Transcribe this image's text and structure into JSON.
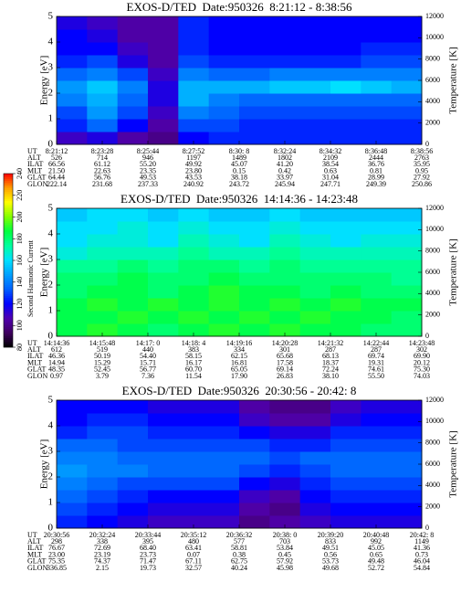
{
  "colorbar": {
    "label": "Second Harmonic Current",
    "lim": [
      80,
      240
    ],
    "ticks": [
      80,
      100,
      120,
      140,
      160,
      180,
      200,
      220,
      240
    ],
    "colors": [
      "#000000",
      "#400060",
      "#5000b0",
      "#0000ff",
      "#0060ff",
      "#00a0ff",
      "#00e0ff",
      "#00ffa0",
      "#00ff40",
      "#80ff00",
      "#ffff00",
      "#ffa000",
      "#ff0000"
    ]
  },
  "chart_data": [
    {
      "type": "heatmap",
      "title": "EXOS-D/TED  Date:950326  8:21:12 - 8:38:56",
      "ylabel": "Energy [eV]",
      "y2label": "Temperature [K]",
      "ylim": [
        0,
        5
      ],
      "yticks": [
        0,
        1,
        2,
        3,
        4,
        5
      ],
      "y2lim": [
        0,
        12000
      ],
      "y2ticks": [
        0,
        2000,
        4000,
        6000,
        8000,
        10000,
        12000
      ],
      "y_edges": [
        0,
        0.5,
        1,
        1.5,
        2,
        2.5,
        3,
        3.5,
        4,
        4.5,
        5
      ],
      "z": [
        [
          110,
          115,
          105,
          100,
          120,
          125,
          125,
          125,
          125,
          125,
          125,
          125
        ],
        [
          125,
          135,
          120,
          105,
          130,
          130,
          125,
          125,
          125,
          125,
          125,
          125
        ],
        [
          130,
          145,
          130,
          110,
          140,
          135,
          130,
          130,
          130,
          130,
          130,
          130
        ],
        [
          140,
          150,
          135,
          115,
          150,
          140,
          135,
          135,
          135,
          135,
          135,
          135
        ],
        [
          145,
          155,
          140,
          115,
          150,
          150,
          150,
          155,
          155,
          160,
          155,
          150
        ],
        [
          135,
          140,
          130,
          110,
          140,
          135,
          135,
          140,
          140,
          140,
          140,
          140
        ],
        [
          125,
          130,
          115,
          105,
          130,
          125,
          125,
          125,
          125,
          125,
          130,
          130
        ],
        [
          120,
          120,
          110,
          105,
          125,
          120,
          120,
          120,
          120,
          120,
          125,
          125
        ],
        [
          120,
          115,
          105,
          105,
          125,
          120,
          120,
          120,
          120,
          120,
          120,
          120
        ],
        [
          115,
          110,
          105,
          105,
          125,
          120,
          120,
          120,
          120,
          120,
          120,
          120
        ]
      ],
      "table": {
        "labels": [
          "UT",
          "ALT",
          "ILAT",
          "MLT",
          "GLAT",
          "GLON"
        ],
        "rows": [
          [
            "8:21:12",
            "8:23:28",
            "8:25:44",
            "8:27:52",
            "8:30: 8",
            "8:32:24",
            "8:34:32",
            "8:36:48",
            "8:38:56"
          ],
          [
            "526",
            "714",
            "946",
            "1197",
            "1489",
            "1802",
            "2109",
            "2444",
            "2763"
          ],
          [
            "66.56",
            "61.12",
            "55.20",
            "49.92",
            "45.07",
            "41.20",
            "38.54",
            "36.76",
            "35.95"
          ],
          [
            "21.50",
            "22.63",
            "23.35",
            "23.80",
            "0.15",
            "0.42",
            "0.63",
            "0.81",
            "0.95"
          ],
          [
            "64.44",
            "56.76",
            "49.53",
            "43.53",
            "38.18",
            "33.97",
            "31.04",
            "28.99",
            "27.92"
          ],
          [
            "222.14",
            "231.68",
            "237.33",
            "240.92",
            "243.72",
            "245.94",
            "247.71",
            "249.39",
            "250.86"
          ]
        ]
      }
    },
    {
      "type": "heatmap",
      "title": "EXOS-D/TED  Date:950326  14:14:36 - 14:23:48",
      "ylabel": "Energy [eV]",
      "y2label": "Temperature [K]",
      "ylim": [
        0,
        5
      ],
      "yticks": [
        0,
        1,
        2,
        3,
        4,
        5
      ],
      "y2lim": [
        0,
        12000
      ],
      "y2ticks": [
        0,
        2000,
        4000,
        6000,
        8000,
        10000,
        12000
      ],
      "y_edges": [
        0,
        0.5,
        1,
        1.5,
        2,
        2.5,
        3,
        3.5,
        4,
        4.5,
        5
      ],
      "z": [
        [
          185,
          190,
          185,
          180,
          185,
          190,
          185,
          190,
          185,
          185,
          180,
          180
        ],
        [
          185,
          185,
          190,
          185,
          190,
          185,
          190,
          185,
          190,
          185,
          185,
          180
        ],
        [
          185,
          190,
          185,
          190,
          185,
          190,
          185,
          190,
          185,
          190,
          185,
          185
        ],
        [
          180,
          185,
          185,
          180,
          185,
          190,
          185,
          185,
          180,
          185,
          180,
          180
        ],
        [
          180,
          180,
          185,
          180,
          180,
          185,
          180,
          180,
          180,
          180,
          180,
          175
        ],
        [
          175,
          175,
          180,
          175,
          180,
          180,
          175,
          180,
          175,
          175,
          175,
          175
        ],
        [
          165,
          170,
          170,
          170,
          175,
          170,
          170,
          175,
          170,
          170,
          170,
          170
        ],
        [
          160,
          165,
          165,
          160,
          170,
          165,
          160,
          170,
          165,
          160,
          165,
          165
        ],
        [
          160,
          160,
          165,
          160,
          165,
          160,
          160,
          165,
          160,
          160,
          160,
          160
        ],
        [
          155,
          160,
          160,
          155,
          160,
          155,
          155,
          160,
          155,
          155,
          155,
          155
        ]
      ],
      "table": {
        "labels": [
          "UT",
          "ALT",
          "ILAT",
          "MLT",
          "GLAT",
          "GLON"
        ],
        "rows": [
          [
            "14:14:36",
            "14:15:48",
            "14:17: 0",
            "14:18: 4",
            "14:19:16",
            "14:20:28",
            "14:21:32",
            "14:22:44",
            "14:23:48"
          ],
          [
            "612",
            "519",
            "440",
            "383",
            "334",
            "301",
            "287",
            "287",
            "302"
          ],
          [
            "46.36",
            "50.19",
            "54.40",
            "58.15",
            "62.15",
            "65.68",
            "68.13",
            "69.74",
            "69.90"
          ],
          [
            "14.94",
            "15.29",
            "15.71",
            "16.17",
            "16.81",
            "17.58",
            "18.37",
            "19.31",
            "20.12"
          ],
          [
            "48.35",
            "52.45",
            "56.77",
            "60.70",
            "65.05",
            "69.14",
            "72.24",
            "74.61",
            "75.30"
          ],
          [
            "0.97",
            "3.79",
            "7.36",
            "11.54",
            "17.90",
            "26.83",
            "38.10",
            "55.50",
            "74.03"
          ]
        ]
      }
    },
    {
      "type": "heatmap",
      "title": "EXOS-D/TED  Date:950326  20:30:56 - 20:42: 8",
      "ylabel": "Energy [eV]",
      "y2label": "Temperature [K]",
      "ylim": [
        0,
        5
      ],
      "yticks": [
        0,
        1,
        2,
        3,
        4,
        5
      ],
      "y2lim": [
        0,
        12000
      ],
      "y2ticks": [
        0,
        2000,
        4000,
        6000,
        8000,
        10000,
        12000
      ],
      "y_edges": [
        0,
        0.5,
        1,
        1.5,
        2,
        2.5,
        3,
        3.5,
        4,
        4.5,
        5
      ],
      "z": [
        [
          125,
          120,
          115,
          110,
          110,
          110,
          100,
          105,
          110,
          115,
          115,
          115
        ],
        [
          130,
          125,
          120,
          115,
          115,
          115,
          105,
          100,
          115,
          120,
          120,
          120
        ],
        [
          135,
          130,
          125,
          120,
          120,
          120,
          110,
          105,
          120,
          125,
          125,
          125
        ],
        [
          140,
          135,
          130,
          130,
          130,
          130,
          120,
          115,
          125,
          130,
          130,
          130
        ],
        [
          145,
          140,
          140,
          135,
          135,
          135,
          130,
          125,
          130,
          135,
          135,
          135
        ],
        [
          140,
          140,
          135,
          135,
          135,
          135,
          135,
          130,
          135,
          135,
          135,
          135
        ],
        [
          135,
          135,
          130,
          130,
          130,
          130,
          130,
          125,
          125,
          130,
          130,
          130
        ],
        [
          125,
          130,
          130,
          125,
          125,
          125,
          120,
          115,
          115,
          125,
          125,
          125
        ],
        [
          120,
          125,
          125,
          120,
          120,
          120,
          110,
          105,
          105,
          115,
          120,
          120
        ],
        [
          120,
          120,
          120,
          115,
          115,
          115,
          105,
          100,
          100,
          110,
          115,
          115
        ]
      ],
      "table": {
        "labels": [
          "UT",
          "ALT",
          "ILAT",
          "MLT",
          "GLAT",
          "GLON"
        ],
        "rows": [
          [
            "20:30:56",
            "20:32:24",
            "20:33:44",
            "20:35:12",
            "20:36:32",
            "20:38: 0",
            "20:39:20",
            "20:40:48",
            "20:42: 8"
          ],
          [
            "298",
            "338",
            "395",
            "480",
            "577",
            "703",
            "833",
            "992",
            "1149"
          ],
          [
            "76.67",
            "72.69",
            "68.40",
            "63.41",
            "58.81",
            "53.84",
            "49.51",
            "45.05",
            "41.36"
          ],
          [
            "23.00",
            "23.19",
            "23.73",
            "0.07",
            "0.38",
            "0.45",
            "0.56",
            "0.65",
            "0.73"
          ],
          [
            "75.35",
            "74.37",
            "71.47",
            "67.11",
            "62.75",
            "57.92",
            "53.73",
            "49.48",
            "46.04"
          ],
          [
            "336.85",
            "2.15",
            "19.73",
            "32.57",
            "40.24",
            "45.98",
            "49.68",
            "52.72",
            "54.84"
          ]
        ]
      }
    }
  ]
}
